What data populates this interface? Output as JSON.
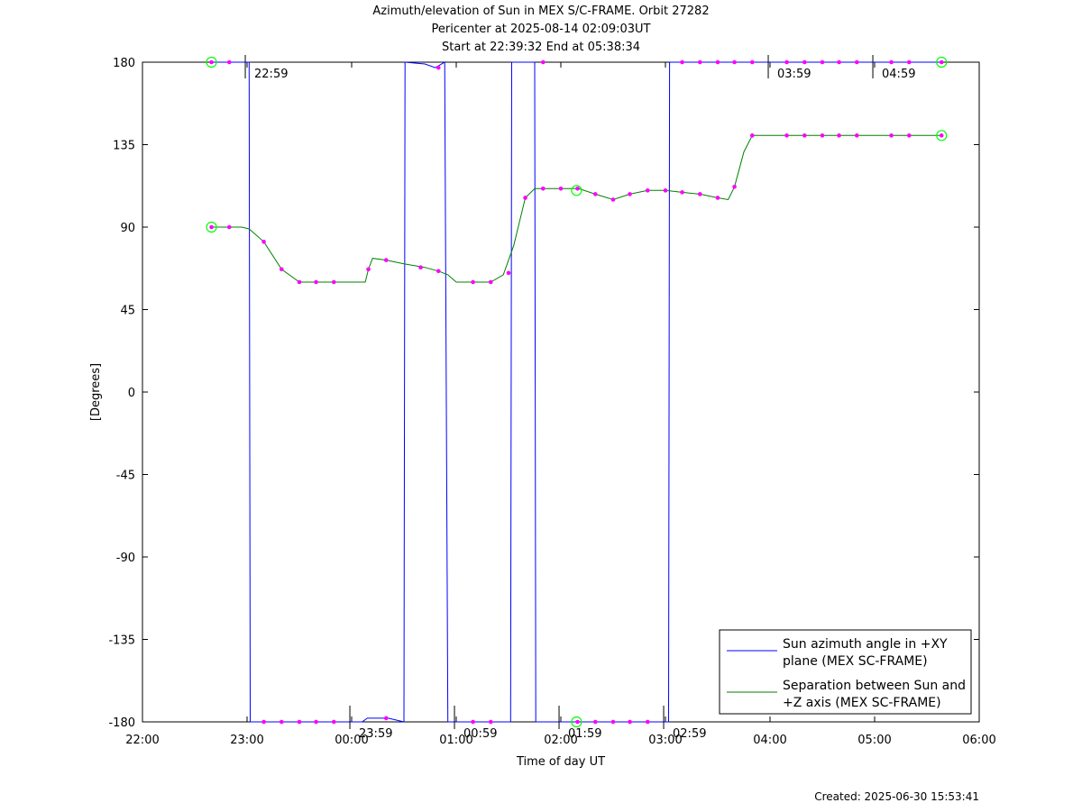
{
  "titles": [
    "Azimuth/elevation of Sun in MEX S/C-FRAME.  Orbit 27282",
    "Pericenter at 2025-08-14 02:09:03UT",
    "Start at 22:39:32 End at 05:38:34"
  ],
  "created": "Created: 2025-06-30 15:53:41",
  "colors": {
    "azimuth": "#0000ff",
    "separation": "#008000",
    "marker": "#ff00ff",
    "endpoint": "#00ff00"
  },
  "chart_data": {
    "type": "line",
    "xlabel": "Time of day UT",
    "ylabel": "[Degrees]",
    "xlim": [
      22.0,
      30.0
    ],
    "ylim": [
      -180,
      180
    ],
    "x_ticks": [
      22,
      23,
      24,
      25,
      26,
      27,
      28,
      29,
      30
    ],
    "x_tick_labels": [
      "22:00",
      "23:00",
      "00:00",
      "01:00",
      "02:00",
      "03:00",
      "04:00",
      "05:00",
      "06:00"
    ],
    "y_ticks": [
      180,
      135,
      90,
      45,
      0,
      -45,
      -90,
      -135,
      -180
    ],
    "y_tick_labels": [
      "180",
      "135",
      "90",
      "45",
      "0",
      "-45",
      "-90",
      "-135",
      "-180"
    ],
    "grid": false,
    "legend": "bottom-right",
    "hour_annotations": [
      {
        "x": 22.983,
        "y": 180,
        "label": "22:59"
      },
      {
        "x": 23.983,
        "y": -180,
        "label": "23:59"
      },
      {
        "x": 24.983,
        "y": -180,
        "label": "00:59"
      },
      {
        "x": 25.983,
        "y": -180,
        "label": "01:59"
      },
      {
        "x": 26.983,
        "y": -180,
        "label": "02:59"
      },
      {
        "x": 27.983,
        "y": 180,
        "label": "03:59"
      },
      {
        "x": 28.983,
        "y": 180,
        "label": "04:59"
      }
    ],
    "series": [
      {
        "name": "Sun azimuth angle in +XY plane (MEX SC-FRAME)",
        "legend_lines": [
          "Sun azimuth angle in +XY",
          "plane (MEX SC-FRAME)"
        ],
        "segments": [
          [
            [
              22.66,
              180
            ],
            [
              22.95,
              180
            ],
            [
              23.02,
              180
            ],
            [
              23.03,
              -180
            ]
          ],
          [
            [
              23.03,
              -180
            ],
            [
              24.1,
              -180
            ],
            [
              24.15,
              -178
            ],
            [
              24.35,
              -178
            ],
            [
              24.5,
              -180
            ]
          ],
          [
            [
              24.5,
              -180
            ],
            [
              24.51,
              180
            ]
          ],
          [
            [
              24.51,
              180
            ],
            [
              24.7,
              179
            ],
            [
              24.8,
              177
            ],
            [
              24.89,
              180
            ],
            [
              24.92,
              -180
            ]
          ],
          [
            [
              24.92,
              -180
            ],
            [
              25.52,
              -180
            ],
            [
              25.53,
              180
            ]
          ],
          [
            [
              25.53,
              180
            ],
            [
              25.75,
              180
            ],
            [
              25.76,
              -180
            ]
          ],
          [
            [
              25.76,
              -180
            ],
            [
              27.03,
              -180
            ],
            [
              27.04,
              180
            ]
          ],
          [
            [
              27.04,
              180
            ],
            [
              29.64,
              180
            ]
          ]
        ],
        "markers": [
          [
            22.66,
            180
          ],
          [
            22.83,
            180
          ],
          [
            23.16,
            -180
          ],
          [
            23.33,
            -180
          ],
          [
            23.5,
            -180
          ],
          [
            23.66,
            -180
          ],
          [
            23.83,
            -180
          ],
          [
            24.33,
            -178
          ],
          [
            24.83,
            177
          ],
          [
            25.16,
            -180
          ],
          [
            25.33,
            -180
          ],
          [
            25.83,
            180
          ],
          [
            26.16,
            -180
          ],
          [
            26.33,
            -180
          ],
          [
            26.5,
            -180
          ],
          [
            26.66,
            -180
          ],
          [
            26.83,
            -180
          ],
          [
            27.16,
            180
          ],
          [
            27.33,
            180
          ],
          [
            27.5,
            180
          ],
          [
            27.66,
            180
          ],
          [
            27.83,
            180
          ],
          [
            28.16,
            180
          ],
          [
            28.33,
            180
          ],
          [
            28.5,
            180
          ],
          [
            28.66,
            180
          ],
          [
            28.83,
            180
          ],
          [
            29.16,
            180
          ],
          [
            29.33,
            180
          ],
          [
            29.64,
            180
          ]
        ]
      },
      {
        "name": "Separation between Sun and +Z axis (MEX SC-FRAME)",
        "legend_lines": [
          "Separation between Sun and",
          "+Z axis (MEX SC-FRAME)"
        ],
        "segments": [
          [
            [
              22.66,
              90
            ],
            [
              22.95,
              90
            ],
            [
              23.02,
              89
            ],
            [
              23.16,
              82
            ],
            [
              23.33,
              67
            ],
            [
              23.5,
              60
            ],
            [
              23.66,
              60
            ],
            [
              23.83,
              60
            ],
            [
              24.0,
              60
            ],
            [
              24.13,
              60
            ],
            [
              24.16,
              67
            ],
            [
              24.2,
              73
            ],
            [
              24.33,
              72
            ],
            [
              24.5,
              70
            ],
            [
              24.7,
              68
            ],
            [
              24.83,
              66
            ],
            [
              24.92,
              64
            ],
            [
              25.0,
              60
            ],
            [
              25.16,
              60
            ],
            [
              25.33,
              60
            ],
            [
              25.45,
              64
            ],
            [
              25.55,
              80
            ],
            [
              25.66,
              106
            ],
            [
              25.75,
              111
            ],
            [
              26.0,
              111
            ],
            [
              26.17,
              111
            ],
            [
              26.33,
              108
            ],
            [
              26.5,
              105
            ],
            [
              26.66,
              108
            ],
            [
              26.83,
              110
            ],
            [
              27.0,
              110
            ],
            [
              27.16,
              109
            ],
            [
              27.33,
              108
            ],
            [
              27.5,
              106
            ],
            [
              27.6,
              105
            ],
            [
              27.66,
              112
            ],
            [
              27.75,
              131
            ],
            [
              27.83,
              140
            ],
            [
              28.0,
              140
            ],
            [
              28.5,
              140
            ],
            [
              29.0,
              140
            ],
            [
              29.64,
              140
            ]
          ]
        ],
        "markers": [
          [
            22.66,
            90
          ],
          [
            22.83,
            90
          ],
          [
            23.16,
            82
          ],
          [
            23.33,
            67
          ],
          [
            23.5,
            60
          ],
          [
            23.66,
            60
          ],
          [
            23.83,
            60
          ],
          [
            24.16,
            67
          ],
          [
            24.33,
            72
          ],
          [
            24.66,
            68
          ],
          [
            24.83,
            66
          ],
          [
            25.16,
            60
          ],
          [
            25.33,
            60
          ],
          [
            25.5,
            65
          ],
          [
            25.66,
            106
          ],
          [
            25.83,
            111
          ],
          [
            26.0,
            111
          ],
          [
            26.16,
            111
          ],
          [
            26.33,
            108
          ],
          [
            26.5,
            105
          ],
          [
            26.66,
            108
          ],
          [
            26.83,
            110
          ],
          [
            27.0,
            110
          ],
          [
            27.16,
            109
          ],
          [
            27.33,
            108
          ],
          [
            27.5,
            106
          ],
          [
            27.66,
            112
          ],
          [
            27.83,
            140
          ],
          [
            28.16,
            140
          ],
          [
            28.33,
            140
          ],
          [
            28.5,
            140
          ],
          [
            28.66,
            140
          ],
          [
            28.83,
            140
          ],
          [
            29.16,
            140
          ],
          [
            29.33,
            140
          ],
          [
            29.64,
            140
          ]
        ]
      }
    ],
    "endpoint_circles": [
      [
        22.66,
        180
      ],
      [
        29.64,
        180
      ],
      [
        22.66,
        90
      ],
      [
        29.64,
        140
      ],
      [
        26.15,
        110
      ],
      [
        26.15,
        -180
      ]
    ]
  }
}
